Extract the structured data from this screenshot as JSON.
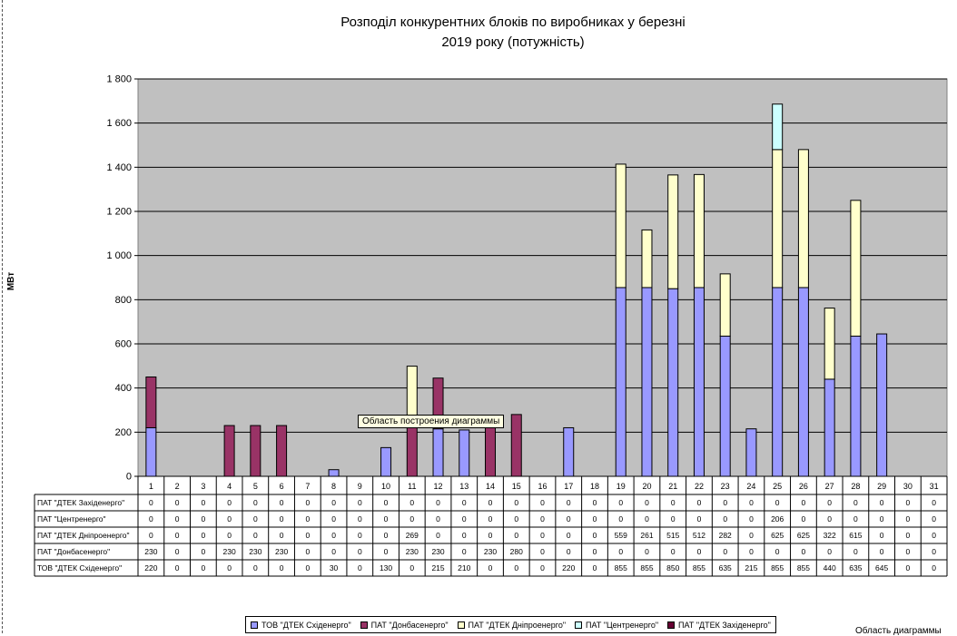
{
  "chart_data": {
    "type": "bar",
    "stacked": true,
    "title": "Розподіл конкурентних блоків по виробниках у березні\n2019 року (потужність)",
    "ylabel": "МВт",
    "xlabel": "",
    "ylim": [
      0,
      1800
    ],
    "yticks": [
      0,
      200,
      400,
      600,
      800,
      1000,
      1200,
      1400,
      1600,
      1800
    ],
    "ytick_labels": [
      "0",
      "200",
      "400",
      "600",
      "800",
      "1 000",
      "1 200",
      "1 400",
      "1 600",
      "1 800"
    ],
    "grid": true,
    "categories": [
      "1",
      "2",
      "3",
      "4",
      "5",
      "6",
      "7",
      "8",
      "9",
      "10",
      "11",
      "12",
      "13",
      "14",
      "15",
      "16",
      "17",
      "18",
      "19",
      "20",
      "21",
      "22",
      "23",
      "24",
      "25",
      "26",
      "27",
      "28",
      "29",
      "30",
      "31"
    ],
    "series": [
      {
        "name": "ТОВ \"ДТЕК Східенерго\"",
        "color": "#9999ff",
        "values": [
          220,
          0,
          0,
          0,
          0,
          0,
          0,
          30,
          0,
          130,
          0,
          215,
          210,
          0,
          0,
          0,
          220,
          0,
          855,
          855,
          850,
          855,
          635,
          215,
          855,
          855,
          440,
          635,
          645,
          0,
          0
        ]
      },
      {
        "name": "ПАТ \"Донбасенерго\"",
        "color": "#993366",
        "values": [
          230,
          0,
          0,
          230,
          230,
          230,
          0,
          0,
          0,
          0,
          230,
          230,
          0,
          230,
          280,
          0,
          0,
          0,
          0,
          0,
          0,
          0,
          0,
          0,
          0,
          0,
          0,
          0,
          0,
          0,
          0
        ]
      },
      {
        "name": "ПАТ \"ДТЕК Дніпроенерго\"",
        "color": "#ffffcc",
        "values": [
          0,
          0,
          0,
          0,
          0,
          0,
          0,
          0,
          0,
          0,
          269,
          0,
          0,
          0,
          0,
          0,
          0,
          0,
          559,
          261,
          515,
          512,
          282,
          0,
          625,
          625,
          322,
          615,
          0,
          0,
          0
        ]
      },
      {
        "name": "ПАТ \"Центренерго\"",
        "color": "#ccffff",
        "values": [
          0,
          0,
          0,
          0,
          0,
          0,
          0,
          0,
          0,
          0,
          0,
          0,
          0,
          0,
          0,
          0,
          0,
          0,
          0,
          0,
          0,
          0,
          0,
          0,
          206,
          0,
          0,
          0,
          0,
          0,
          0
        ]
      },
      {
        "name": "ПАТ \"ДТЕК Західенерго\"",
        "color": "#660033",
        "values": [
          0,
          0,
          0,
          0,
          0,
          0,
          0,
          0,
          0,
          0,
          0,
          0,
          0,
          0,
          0,
          0,
          0,
          0,
          0,
          0,
          0,
          0,
          0,
          0,
          0,
          0,
          0,
          0,
          0,
          0,
          0
        ]
      }
    ],
    "table_row_order": [
      4,
      3,
      2,
      1,
      0
    ],
    "legend_position": "bottom",
    "plot_background": "#c0c0c0"
  },
  "tooltip": "Область построения диаграммы",
  "corner_label": "Область  диаграммы"
}
